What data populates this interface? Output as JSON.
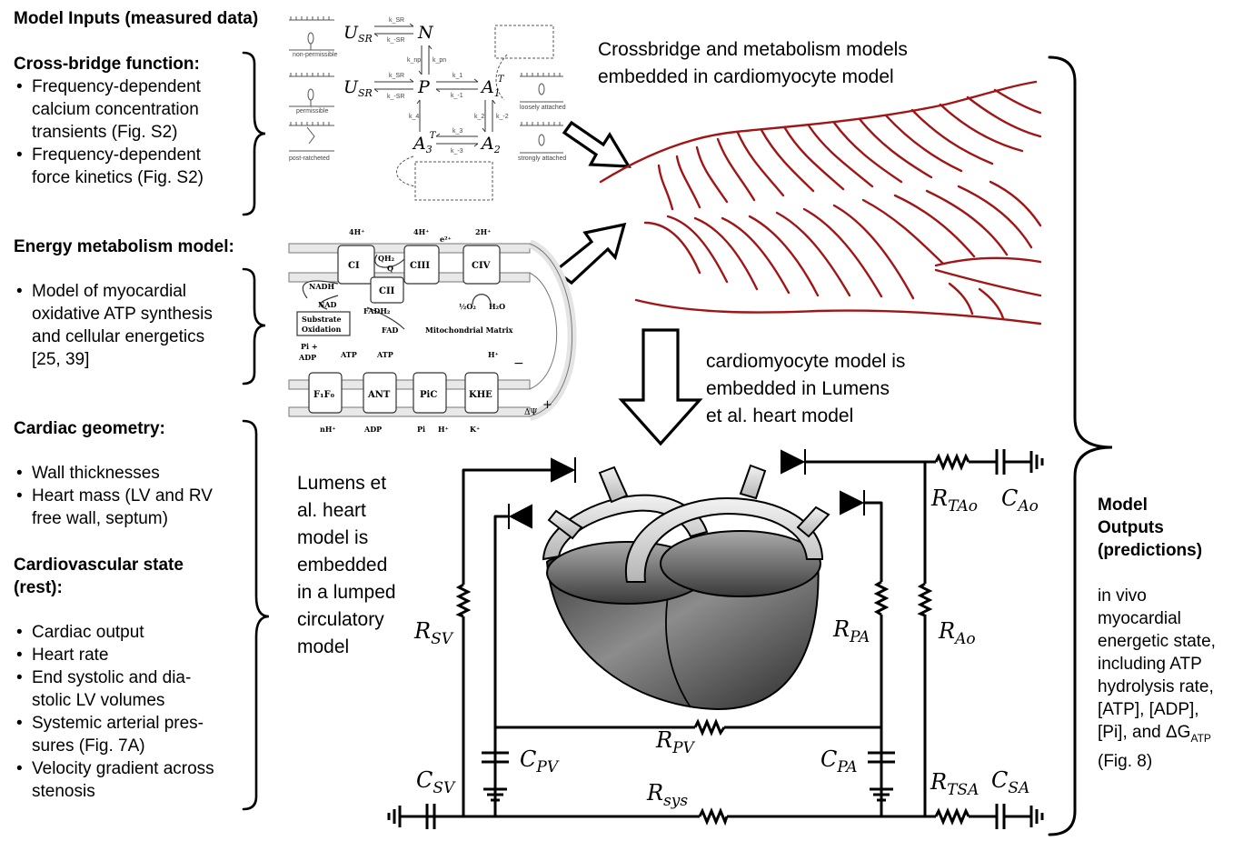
{
  "inputs": {
    "title": "Model Inputs (measured data)",
    "crossbridge": {
      "heading": "Cross-bridge function:",
      "items": [
        "Frequency-dependent calcium concentration transients (Fig. S2)",
        "Frequency-dependent force kinetics (Fig. S2)"
      ]
    },
    "energy": {
      "heading": "Energy metabolism model:",
      "items": [
        "Model of myocardial oxidative ATP synthesis and cellular energetics [25, 39]"
      ]
    },
    "geometry": {
      "heading": "Cardiac geometry:",
      "items": [
        "Wall thicknesses",
        "Heart mass (LV and RV free wall, septum)"
      ]
    },
    "cv_state": {
      "heading_line1": "Cardiovascular state",
      "heading_line2": "(rest):",
      "items": [
        "Cardiac output",
        "Heart rate",
        "End systolic and dia-stolic LV volumes",
        "Systemic arterial pres-sures (Fig. 7A)",
        "Velocity gradient across stenosis"
      ]
    }
  },
  "captions": {
    "crossbridge_embed": [
      "Crossbridge and metabolism models",
      "embedded in cardiomyocyte model"
    ],
    "cardiomyocyte_embed": [
      "cardiomyocyte model is",
      "embedded in Lumens",
      "et al. heart model"
    ],
    "lumens_embed": [
      "Lumens et",
      "al. heart",
      "model is",
      "embedded",
      "in a lumped",
      "circulatory",
      "model"
    ]
  },
  "outputs": {
    "title_lines": [
      "Model",
      "Outputs",
      "(predictions)"
    ],
    "body_lines": [
      "in vivo",
      "myocardial",
      "energetic state,",
      "including ATP",
      "hydrolysis rate,",
      "[ATP], [ADP],",
      "[Pi], and ΔG"
    ],
    "atp_sub": "ATP",
    "fig": "(Fig. 8)"
  },
  "crossbridge_scheme": {
    "states": [
      "U",
      "N",
      "P",
      "A",
      "A",
      "A"
    ],
    "state_subs": [
      "SR",
      "SR",
      "1",
      "2",
      "3"
    ],
    "state_sups": [
      "T",
      "T"
    ],
    "labels": [
      "non-permissible",
      "permissible",
      "loosely attached",
      "strongly attached",
      "post-ratcheted"
    ],
    "rates": [
      "k_SR",
      "k_-SR",
      "k_np",
      "k_pn",
      "k_1",
      "k_-1",
      "k_2",
      "k_-2",
      "k_3",
      "k_-3",
      "k_4"
    ]
  },
  "metabolism_scheme": {
    "complexes": [
      "CI",
      "CIII",
      "CIV",
      "CII",
      "QH₂",
      "Q"
    ],
    "protons_top": [
      "4H⁺",
      "4H⁺",
      "2H⁺"
    ],
    "electron": "e²⁺",
    "species": [
      "NADH",
      "NAD",
      "FADH₂",
      "FAD",
      "½O₂",
      "H₂O"
    ],
    "substrate": [
      "Substrate",
      "Oxidation"
    ],
    "matrix": "Mitochondrial Matrix",
    "transporters": [
      "F₁F₀",
      "ANT",
      "PiC",
      "KHE"
    ],
    "top_labels": [
      "Pi +",
      "ADP",
      "ATP",
      "ATP",
      "H⁺"
    ],
    "bottom_labels": [
      "nH⁺",
      "ADP",
      "Pi",
      "H⁺",
      "K⁺"
    ],
    "membrane_potential": [
      "−",
      "ΔΨ",
      "+"
    ]
  },
  "circuit": {
    "labels": [
      {
        "base": "R",
        "sub": "TAo"
      },
      {
        "base": "C",
        "sub": "Ao"
      },
      {
        "base": "R",
        "sub": "SV"
      },
      {
        "base": "R",
        "sub": "PA"
      },
      {
        "base": "R",
        "sub": "Ao"
      },
      {
        "base": "R",
        "sub": "PV"
      },
      {
        "base": "C",
        "sub": "PV"
      },
      {
        "base": "C",
        "sub": "PA"
      },
      {
        "base": "C",
        "sub": "SV"
      },
      {
        "base": "R",
        "sub": "TSA"
      },
      {
        "base": "C",
        "sub": "SA"
      },
      {
        "base": "R",
        "sub": "sys"
      }
    ]
  }
}
